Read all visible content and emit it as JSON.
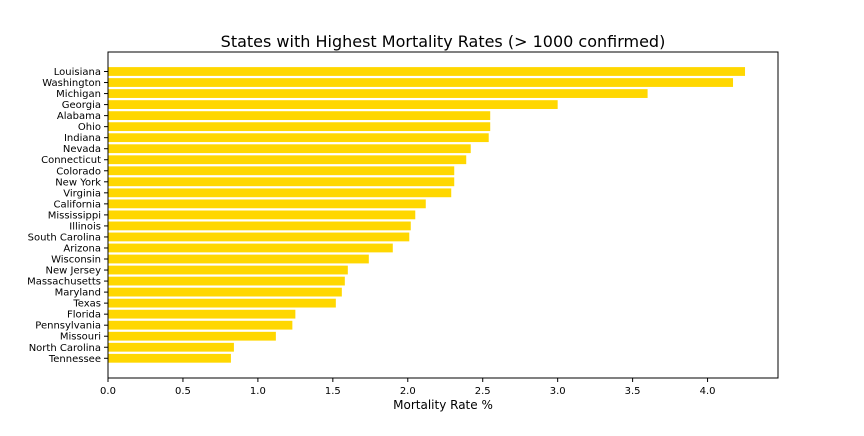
{
  "chart_data": {
    "type": "bar",
    "orientation": "horizontal",
    "title": "States with Highest Mortality Rates (> 1000 confirmed)",
    "xlabel": "Mortality Rate %",
    "ylabel": "",
    "xlim": [
      0,
      4.47
    ],
    "xticks": [
      0.0,
      0.5,
      1.0,
      1.5,
      2.0,
      2.5,
      3.0,
      3.5,
      4.0
    ],
    "xtick_labels": [
      "0.0",
      "0.5",
      "1.0",
      "1.5",
      "2.0",
      "2.5",
      "3.0",
      "3.5",
      "4.0"
    ],
    "grid": false,
    "legend": false,
    "bar_color": "#ffd700",
    "categories": [
      "Louisiana",
      "Washington",
      "Michigan",
      "Georgia",
      "Alabama",
      "Ohio",
      "Indiana",
      "Nevada",
      "Connecticut",
      "Colorado",
      "New York",
      "Virginia",
      "California",
      "Mississippi",
      "Illinois",
      "South Carolina",
      "Arizona",
      "Wisconsin",
      "New Jersey",
      "Massachusetts",
      "Maryland",
      "Texas",
      "Florida",
      "Pennsylvania",
      "Missouri",
      "North Carolina",
      "Tennessee"
    ],
    "values": [
      4.25,
      4.17,
      3.6,
      3.0,
      2.55,
      2.55,
      2.54,
      2.42,
      2.39,
      2.31,
      2.31,
      2.29,
      2.12,
      2.05,
      2.02,
      2.01,
      1.9,
      1.74,
      1.6,
      1.58,
      1.56,
      1.52,
      1.25,
      1.23,
      1.12,
      0.84,
      0.82
    ]
  }
}
